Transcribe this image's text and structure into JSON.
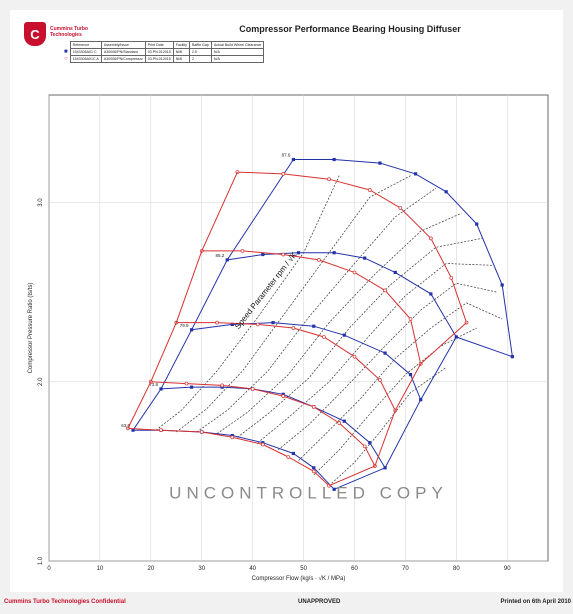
{
  "header": {
    "logo_text": "Cummins Turbo Technologies",
    "title": "Compressor Performance Bearing Housing Diffuser"
  },
  "legend_table": {
    "headers": [
      "Reference",
      "Assembly/Issue",
      "Print Date",
      "Facility",
      "Baffle Gap",
      "Actual Build Wheel Clearance"
    ],
    "rows": [
      {
        "color": "#2233aa",
        "marker": "■",
        "cells": [
          "1543306A01 C",
          "A30006/PN/Standard",
          "03.PN.012015",
          "NMI",
          "2.5",
          "N/A"
        ]
      },
      {
        "color": "#d93030",
        "marker": "○",
        "cells": [
          "1543306A01C A",
          "A30006/PN/Compressor",
          "03.PN.012015",
          "NMI",
          "2",
          "N/A"
        ]
      }
    ]
  },
  "colors": {
    "blue_series": "#2233aa",
    "red_series": "#d93030",
    "efficiency_lines": "#333333",
    "accent_footer": "#c8102e"
  },
  "watermark": "UNCONTROLLED COPY",
  "speed_annotation": "Speed Parameter rpm / √K",
  "chart_data": {
    "type": "line",
    "xlabel": "Compressor Flow (kg/s · √K / MPa)",
    "ylabel": "Compressor Pressure Ratio (ts/ts)",
    "xlim": [
      0,
      98
    ],
    "ylim": [
      1.0,
      3.6
    ],
    "xticks": [
      0,
      10,
      20,
      30,
      40,
      50,
      60,
      70,
      80,
      90
    ],
    "yticks": [
      1.0,
      2.0,
      3.0
    ],
    "ytick_labels": [
      "1.0",
      "2.0",
      "3.0"
    ],
    "grid": true,
    "series": [
      {
        "name": "1543306A01 C",
        "color": "#2233aa",
        "marker": "square",
        "speed_lines": [
          {
            "label": "63.5",
            "x": [
              16.5,
              22,
              30,
              36,
              42,
              48,
              52,
              56
            ],
            "y": [
              1.73,
              1.73,
              1.72,
              1.7,
              1.66,
              1.6,
              1.52,
              1.4
            ]
          },
          {
            "label": "73.8",
            "x": [
              22,
              28,
              34,
              40,
              46,
              52,
              58,
              63,
              66
            ],
            "y": [
              1.96,
              1.97,
              1.97,
              1.96,
              1.93,
              1.86,
              1.78,
              1.66,
              1.52
            ]
          },
          {
            "label": "79.9",
            "x": [
              28,
              36,
              44,
              52,
              58,
              66,
              71,
              73
            ],
            "y": [
              2.29,
              2.32,
              2.33,
              2.31,
              2.26,
              2.16,
              2.04,
              1.9
            ]
          },
          {
            "label": "85.2",
            "x": [
              35,
              42,
              49,
              56,
              62,
              68,
              75,
              80
            ],
            "y": [
              2.68,
              2.71,
              2.72,
              2.72,
              2.69,
              2.61,
              2.49,
              2.25
            ]
          },
          {
            "label": "87.6",
            "x": [
              48,
              56,
              65,
              72,
              78,
              84,
              89,
              91
            ],
            "y": [
              3.24,
              3.24,
              3.22,
              3.16,
              3.06,
              2.88,
              2.54,
              2.14
            ]
          }
        ],
        "surge_line": {
          "x": [
            16.5,
            22,
            28,
            35,
            48
          ],
          "y": [
            1.73,
            1.96,
            2.29,
            2.68,
            3.24
          ]
        },
        "choke_line": {
          "x": [
            56,
            66,
            73,
            80,
            91
          ],
          "y": [
            1.4,
            1.52,
            1.9,
            2.25,
            2.14
          ]
        }
      },
      {
        "name": "1543306A01C A",
        "color": "#d93030",
        "marker": "circle",
        "speed_lines": [
          {
            "label": "63.5",
            "x": [
              15.5,
              22,
              30,
              36,
              42,
              47,
              52,
              55
            ],
            "y": [
              1.74,
              1.73,
              1.72,
              1.69,
              1.65,
              1.58,
              1.5,
              1.42
            ]
          },
          {
            "label": "73.8",
            "x": [
              20,
              27,
              34,
              40,
              46,
              52,
              57,
              62,
              64
            ],
            "y": [
              2.0,
              1.99,
              1.98,
              1.96,
              1.92,
              1.86,
              1.77,
              1.64,
              1.53
            ]
          },
          {
            "label": "79.9",
            "x": [
              25,
              33,
              41,
              48,
              54,
              60,
              65,
              68
            ],
            "y": [
              2.33,
              2.33,
              2.32,
              2.3,
              2.25,
              2.14,
              2.01,
              1.84
            ]
          },
          {
            "label": "85.2",
            "x": [
              30,
              38,
              46,
              53,
              60,
              66,
              71,
              73
            ],
            "y": [
              2.73,
              2.73,
              2.71,
              2.68,
              2.61,
              2.51,
              2.35,
              2.1
            ]
          },
          {
            "label": "87.6",
            "x": [
              37,
              46,
              55,
              63,
              69,
              75,
              79,
              82
            ],
            "y": [
              3.17,
              3.16,
              3.13,
              3.07,
              2.97,
              2.8,
              2.58,
              2.33
            ]
          }
        ],
        "surge_line": {
          "x": [
            15.5,
            20,
            25,
            30,
            37
          ],
          "y": [
            1.74,
            2.0,
            2.33,
            2.73,
            3.17
          ]
        },
        "choke_line": {
          "x": [
            55,
            64,
            68,
            73,
            82
          ],
          "y": [
            1.42,
            1.53,
            1.84,
            2.1,
            2.33
          ]
        }
      }
    ],
    "efficiency_islands": [
      {
        "x": [
          21,
          26,
          33,
          41,
          50,
          57
        ],
        "y": [
          1.73,
          1.84,
          2.06,
          2.36,
          2.72,
          3.15
        ]
      },
      {
        "x": [
          25,
          31,
          38,
          46,
          55,
          63,
          71
        ],
        "y": [
          1.72,
          1.85,
          2.06,
          2.37,
          2.72,
          3.03,
          3.15
        ]
      },
      {
        "x": [
          29,
          35,
          43,
          51,
          60,
          68,
          76
        ],
        "y": [
          1.72,
          1.84,
          2.06,
          2.36,
          2.66,
          2.92,
          3.08
        ]
      },
      {
        "x": [
          33,
          39,
          47,
          55,
          64,
          73,
          81
        ],
        "y": [
          1.71,
          1.83,
          2.04,
          2.33,
          2.6,
          2.84,
          2.94
        ]
      },
      {
        "x": [
          37,
          43,
          51,
          59,
          67,
          76,
          85
        ],
        "y": [
          1.69,
          1.82,
          2.02,
          2.3,
          2.54,
          2.75,
          2.8
        ]
      },
      {
        "x": [
          41,
          47,
          55,
          63,
          70,
          78,
          87
        ],
        "y": [
          1.66,
          1.8,
          2.0,
          2.26,
          2.48,
          2.66,
          2.65
        ]
      },
      {
        "x": [
          45,
          51,
          58,
          66,
          73,
          80,
          88
        ],
        "y": [
          1.62,
          1.76,
          1.96,
          2.2,
          2.4,
          2.55,
          2.5
        ]
      },
      {
        "x": [
          49,
          54,
          61,
          68,
          75,
          82,
          89
        ],
        "y": [
          1.56,
          1.7,
          1.9,
          2.13,
          2.3,
          2.44,
          2.35
        ]
      },
      {
        "x": [
          52,
          57,
          63,
          70,
          77,
          84
        ],
        "y": [
          1.48,
          1.62,
          1.82,
          2.04,
          2.2,
          2.3
        ]
      },
      {
        "x": [
          55,
          60,
          65,
          71,
          78
        ],
        "y": [
          1.42,
          1.55,
          1.72,
          1.94,
          2.08
        ]
      }
    ]
  },
  "footer": {
    "confidential": "Cummins Turbo Technologies Confidential",
    "status": "UNAPPROVED",
    "printed": "Printed on 6th April 2010"
  }
}
